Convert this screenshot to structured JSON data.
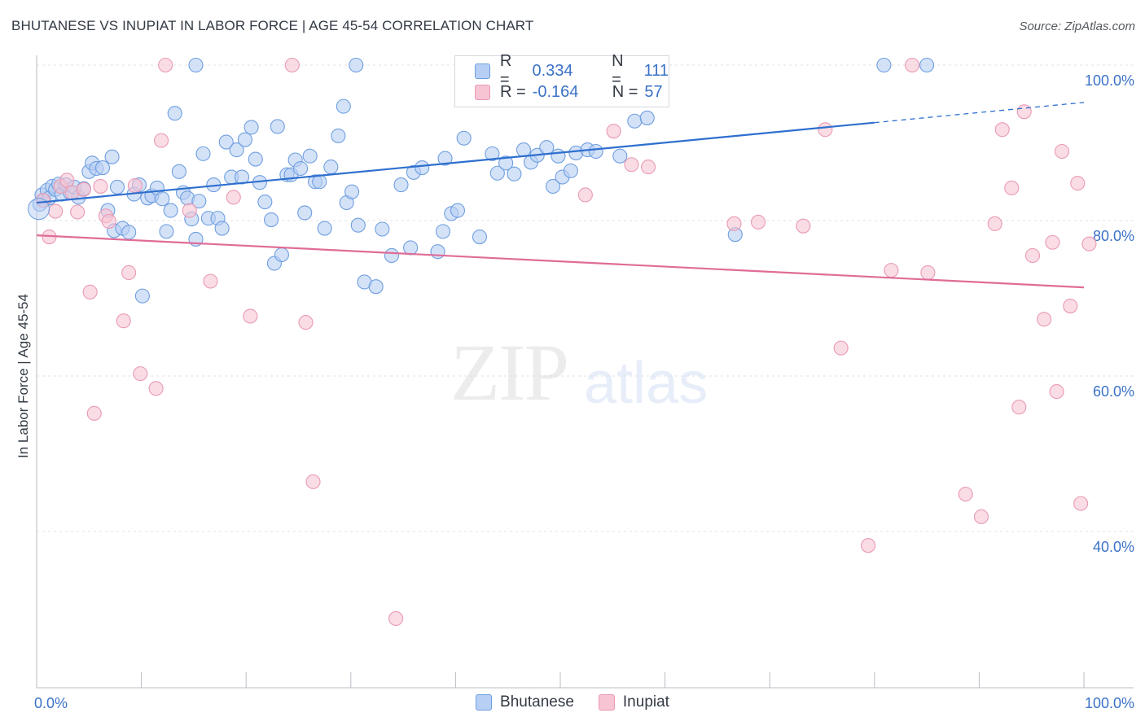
{
  "title": "BHUTANESE VS INUPIAT IN LABOR FORCE | AGE 45-54 CORRELATION CHART",
  "source": "Source: ZipAtlas.com",
  "watermark": {
    "zip": "ZIP",
    "atlas": "atlas"
  },
  "legend": {
    "r_label": "R =",
    "n_label": "N =",
    "rows": [
      {
        "series": "Bhutanese",
        "r": "0.334",
        "n": "111",
        "fill": "#b7cff4",
        "stroke": "#6f9fe0"
      },
      {
        "series": "Inupiat",
        "r": "-0.164",
        "n": "57",
        "fill": "#f7c4d3",
        "stroke": "#e99ab3"
      }
    ]
  },
  "bottom_legend": [
    {
      "label": "Bhutanese",
      "fill": "#b7cff4",
      "stroke": "#6f9fe0"
    },
    {
      "label": "Inupiat",
      "fill": "#f7c4d3",
      "stroke": "#e99ab3"
    }
  ],
  "chart_data": {
    "type": "scatter",
    "title": "BHUTANESE VS INUPIAT IN LABOR FORCE | AGE 45-54 CORRELATION CHART",
    "xlabel": "",
    "ylabel": "In Labor Force | Age 45-54",
    "xlim": [
      0,
      100
    ],
    "ylim": [
      20,
      102
    ],
    "x_tick_labels": [
      "0.0%",
      "100.0%"
    ],
    "y_ticks": [
      40,
      60,
      80,
      100
    ],
    "y_tick_labels": [
      "40.0%",
      "60.0%",
      "80.0%",
      "100.0%"
    ],
    "grid": "horizontal dashed",
    "legend_position": "top-center",
    "series": [
      {
        "name": "Bhutanese",
        "color": "#6f9fe0",
        "fill": "#b7cff4",
        "trend": {
          "x": [
            0,
            80
          ],
          "y": [
            82.3,
            92.6
          ],
          "dashed_to": [
            100,
            95.2
          ],
          "color": "#2e6fce"
        },
        "points": [
          [
            0.3,
            82.1
          ],
          [
            0.5,
            83.3
          ],
          [
            0.7,
            82.6
          ],
          [
            1,
            83.9
          ],
          [
            1.2,
            82.9
          ],
          [
            1.5,
            84.4
          ],
          [
            1.8,
            84.0
          ],
          [
            2.1,
            84.7
          ],
          [
            2.4,
            83.4
          ],
          [
            2.8,
            84.6
          ],
          [
            3.2,
            83.6
          ],
          [
            3.6,
            84.3
          ],
          [
            4,
            83.0
          ],
          [
            4.5,
            84.1
          ],
          [
            5,
            86.3
          ],
          [
            5.3,
            87.4
          ],
          [
            5.7,
            86.7
          ],
          [
            6.3,
            86.8
          ],
          [
            6.8,
            81.3
          ],
          [
            7.2,
            88.2
          ],
          [
            7.7,
            84.3
          ],
          [
            7.4,
            78.7
          ],
          [
            8.2,
            79.0
          ],
          [
            8.8,
            78.5
          ],
          [
            9.3,
            83.4
          ],
          [
            9.8,
            84.6
          ],
          [
            10.1,
            70.3
          ],
          [
            10.6,
            82.9
          ],
          [
            11,
            83.2
          ],
          [
            11.5,
            84.2
          ],
          [
            12,
            82.8
          ],
          [
            12.4,
            78.6
          ],
          [
            12.8,
            81.3
          ],
          [
            13.2,
            93.8
          ],
          [
            13.6,
            86.3
          ],
          [
            14,
            83.6
          ],
          [
            14.4,
            82.9
          ],
          [
            14.8,
            80.2
          ],
          [
            15.2,
            77.6
          ],
          [
            15.5,
            82.5
          ],
          [
            15.9,
            88.6
          ],
          [
            16.4,
            80.3
          ],
          [
            16.9,
            84.6
          ],
          [
            17.3,
            80.3
          ],
          [
            17.7,
            79.0
          ],
          [
            18.1,
            90.1
          ],
          [
            18.6,
            85.6
          ],
          [
            19.1,
            89.1
          ],
          [
            19.6,
            85.6
          ],
          [
            19.9,
            90.4
          ],
          [
            20.5,
            92.0
          ],
          [
            20.9,
            87.9
          ],
          [
            21.3,
            84.9
          ],
          [
            21.8,
            82.4
          ],
          [
            22.4,
            80.1
          ],
          [
            22.7,
            74.5
          ],
          [
            23,
            92.1
          ],
          [
            23.4,
            75.6
          ],
          [
            23.9,
            85.9
          ],
          [
            24.3,
            85.9
          ],
          [
            24.7,
            87.8
          ],
          [
            25.2,
            86.7
          ],
          [
            25.6,
            81.0
          ],
          [
            26.1,
            88.3
          ],
          [
            26.6,
            85.0
          ],
          [
            27,
            85.0
          ],
          [
            27.5,
            79.0
          ],
          [
            28.1,
            86.9
          ],
          [
            28.8,
            90.9
          ],
          [
            29.3,
            94.7
          ],
          [
            29.6,
            82.3
          ],
          [
            30.1,
            83.7
          ],
          [
            30.7,
            79.4
          ],
          [
            31.3,
            72.1
          ],
          [
            32.4,
            71.5
          ],
          [
            33,
            78.9
          ],
          [
            33.9,
            75.5
          ],
          [
            34.8,
            84.6
          ],
          [
            35.7,
            76.5
          ],
          [
            36,
            86.2
          ],
          [
            36.8,
            86.8
          ],
          [
            38.3,
            76.0
          ],
          [
            38.8,
            78.6
          ],
          [
            39,
            88.0
          ],
          [
            39.6,
            80.9
          ],
          [
            40.2,
            81.3
          ],
          [
            40.8,
            90.6
          ],
          [
            42.3,
            77.9
          ],
          [
            43.5,
            88.6
          ],
          [
            44,
            86.1
          ],
          [
            44.8,
            87.4
          ],
          [
            45.6,
            86.0
          ],
          [
            46.5,
            89.1
          ],
          [
            47.2,
            87.5
          ],
          [
            47.8,
            88.4
          ],
          [
            48.7,
            89.4
          ],
          [
            49.3,
            84.4
          ],
          [
            49.8,
            88.3
          ],
          [
            50.2,
            85.6
          ],
          [
            51,
            86.4
          ],
          [
            51.5,
            88.7
          ],
          [
            52.6,
            89.1
          ],
          [
            53.4,
            88.9
          ],
          [
            55.7,
            88.3
          ],
          [
            57.1,
            92.8
          ],
          [
            58.3,
            93.2
          ],
          [
            66.7,
            78.2
          ],
          [
            80.9,
            100
          ],
          [
            85,
            100
          ],
          [
            15.2,
            100
          ],
          [
            30.5,
            100
          ]
        ]
      },
      {
        "name": "Inupiat",
        "color": "#e99ab3",
        "fill": "#f7c4d3",
        "trend": {
          "x": [
            0,
            100
          ],
          "y": [
            78.1,
            71.4
          ],
          "color": "#e06c97"
        },
        "points": [
          [
            0.6,
            82.6
          ],
          [
            1.2,
            77.9
          ],
          [
            1.8,
            81.2
          ],
          [
            2.3,
            84.4
          ],
          [
            2.9,
            85.2
          ],
          [
            3.4,
            83.6
          ],
          [
            3.9,
            81.1
          ],
          [
            4.5,
            84.0
          ],
          [
            5.1,
            70.8
          ],
          [
            5.5,
            55.2
          ],
          [
            6.1,
            84.4
          ],
          [
            6.6,
            80.6
          ],
          [
            6.9,
            79.9
          ],
          [
            8.3,
            67.1
          ],
          [
            8.8,
            73.3
          ],
          [
            9.4,
            84.5
          ],
          [
            9.9,
            60.3
          ],
          [
            11.4,
            58.4
          ],
          [
            11.9,
            90.3
          ],
          [
            12.3,
            100
          ],
          [
            14.6,
            81.3
          ],
          [
            16.6,
            72.2
          ],
          [
            18.8,
            83.0
          ],
          [
            20.4,
            67.7
          ],
          [
            24.4,
            100
          ],
          [
            25.7,
            66.9
          ],
          [
            26.4,
            46.4
          ],
          [
            34.3,
            28.8
          ],
          [
            52.4,
            83.3
          ],
          [
            55.1,
            91.5
          ],
          [
            56.8,
            87.2
          ],
          [
            58.4,
            86.9
          ],
          [
            66.6,
            79.6
          ],
          [
            68.9,
            79.8
          ],
          [
            73.2,
            79.3
          ],
          [
            75.3,
            91.7
          ],
          [
            76.8,
            63.6
          ],
          [
            79.4,
            38.2
          ],
          [
            81.6,
            73.6
          ],
          [
            83.6,
            100
          ],
          [
            85.1,
            73.3
          ],
          [
            88.7,
            44.8
          ],
          [
            90.2,
            41.9
          ],
          [
            91.5,
            79.6
          ],
          [
            92.2,
            91.7
          ],
          [
            93.1,
            84.2
          ],
          [
            93.8,
            56.0
          ],
          [
            94.3,
            94.0
          ],
          [
            95.1,
            75.5
          ],
          [
            96.2,
            67.3
          ],
          [
            97,
            77.2
          ],
          [
            97.4,
            58.0
          ],
          [
            97.9,
            88.9
          ],
          [
            98.7,
            69.0
          ],
          [
            99.7,
            43.6
          ],
          [
            99.4,
            84.8
          ],
          [
            100.5,
            77
          ]
        ]
      }
    ]
  }
}
